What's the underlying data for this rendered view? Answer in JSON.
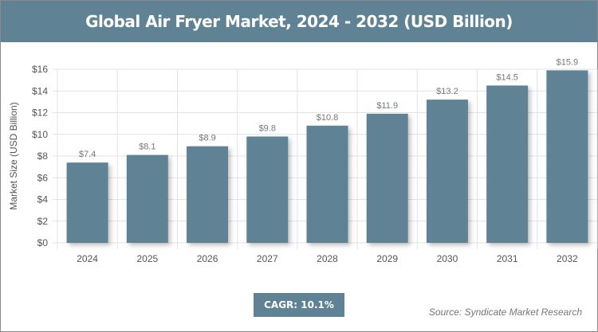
{
  "chart_data": {
    "type": "bar",
    "title": "Global Air Fryer Market, 2024 - 2032 (USD Billion)",
    "xlabel": "",
    "ylabel": "Market Size (USD Billion)",
    "categories": [
      "2024",
      "2025",
      "2026",
      "2027",
      "2028",
      "2029",
      "2030",
      "2031",
      "2032"
    ],
    "values": [
      7.4,
      8.1,
      8.9,
      9.8,
      10.8,
      11.9,
      13.2,
      14.5,
      15.9
    ],
    "data_labels": [
      "$7.4",
      "$8.1",
      "$8.9",
      "$9.8",
      "$10.8",
      "$11.9",
      "$13.2",
      "$14.5",
      "$15.9"
    ],
    "ylim": [
      0,
      16
    ],
    "yticks": [
      0,
      2,
      4,
      6,
      8,
      10,
      12,
      14,
      16
    ],
    "ytick_labels": [
      "$0",
      "$2",
      "$4",
      "$6",
      "$8",
      "$10",
      "$12",
      "$14",
      "$16"
    ],
    "grid": true,
    "bar_color": "#5f8394"
  },
  "cagr_label": "CAGR: 10.1%",
  "source": "Source: Syndicate Market Research"
}
